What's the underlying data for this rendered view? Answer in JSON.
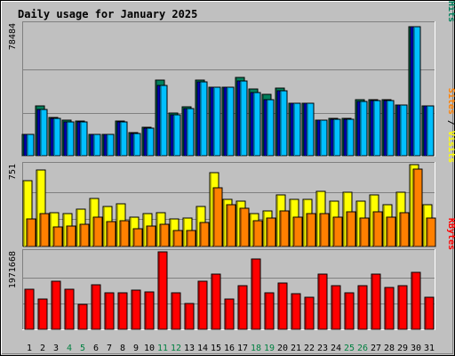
{
  "chart_data": {
    "title": "Daily usage for January 2025",
    "type": "bar",
    "categories": [
      "1",
      "2",
      "3",
      "4",
      "5",
      "6",
      "7",
      "8",
      "9",
      "10",
      "11",
      "12",
      "13",
      "14",
      "15",
      "16",
      "17",
      "18",
      "19",
      "20",
      "21",
      "22",
      "23",
      "24",
      "25",
      "26",
      "27",
      "28",
      "29",
      "30",
      "31"
    ],
    "weekend_days": [
      "4",
      "5",
      "11",
      "12",
      "18",
      "19",
      "25",
      "26"
    ],
    "colors": {
      "title": "#0000a0",
      "hits": "#00805c",
      "files": "#0000ff",
      "pages": "#00c0ff",
      "visits": "#ffff00",
      "sites": "#ff8000",
      "kbytes": "#ff0000",
      "weekday_label": "#000000",
      "weekend_label": "#008040"
    },
    "panels": [
      {
        "name": "hits-files-pages",
        "ymax": 78484,
        "ymax_label": "78484",
        "right_labels": [
          {
            "text": "Pages",
            "color": "#00c0ff"
          },
          {
            "text": " / ",
            "color": "#000000"
          },
          {
            "text": "Files",
            "color": "#0000ff"
          },
          {
            "text": " / ",
            "color": "#000000"
          },
          {
            "text": "Hits",
            "color": "#00805c"
          }
        ],
        "series": [
          {
            "values": [
              13200,
              30300,
              23400,
              21900,
              21000,
              12800,
              13200,
              21000,
              14100,
              17400,
              45900,
              26200,
              29700,
              45900,
              41700,
              41700,
              47400,
              40800,
              37300,
              41100,
              32100,
              32100,
              21900,
              22800,
              23000,
              34100,
              34100,
              34100,
              30900,
              78400,
              30300
            ]
          },
          {
            "values": [
              13200,
              28200,
              22500,
              20800,
              20400,
              12800,
              13200,
              20400,
              13700,
              16900,
              42600,
              25000,
              28700,
              45000,
              41700,
              41700,
              45300,
              38700,
              33900,
              39600,
              32100,
              32100,
              21900,
              22000,
              22400,
              33000,
              33400,
              33800,
              30700,
              78400,
              30300
            ]
          },
          {
            "values": [
              13200,
              28200,
              22500,
              20800,
              20400,
              12800,
              13200,
              20400,
              13700,
              16900,
              42600,
              25000,
              28700,
              45000,
              41700,
              41700,
              45300,
              38700,
              33900,
              39600,
              32100,
              32100,
              21900,
              22000,
              22400,
              33000,
              33400,
              33800,
              30700,
              78400,
              30300
            ]
          }
        ]
      },
      {
        "name": "visits-sites",
        "ymax": 751,
        "ymax_label": "751",
        "right_labels": [
          {
            "text": "Sites",
            "color": "#ff8000"
          },
          {
            "text": " / ",
            "color": "#000000"
          },
          {
            "text": "Visits",
            "color": "#ffff00"
          }
        ],
        "series": [
          {
            "values": [
              600,
              700,
              310,
              300,
              340,
              440,
              370,
              390,
              270,
              300,
              310,
              250,
              260,
              370,
              680,
              430,
              420,
              300,
              330,
              470,
              430,
              430,
              510,
              420,
              500,
              420,
              470,
              380,
              500,
              750,
              380
            ]
          },
          {
            "values": [
              250,
              300,
              180,
              190,
              200,
              270,
              230,
              240,
              160,
              190,
              200,
              150,
              150,
              220,
              540,
              380,
              350,
              240,
              260,
              330,
              270,
              300,
              300,
              270,
              320,
              260,
              320,
              270,
              310,
              710,
              260
            ]
          }
        ]
      },
      {
        "name": "kbytes",
        "ymax": 1971668,
        "ymax_label": "1971668",
        "right_labels": [
          {
            "text": "KBytes",
            "color": "#ff0000"
          }
        ],
        "series": [
          {
            "values": [
              1027000,
              780000,
              1230000,
              1018000,
              645000,
              1134000,
              937000,
              937000,
              987000,
              942000,
              1971000,
              937000,
              648000,
              1227000,
              1403000,
              780000,
              1100000,
              1790000,
              936000,
              1168000,
              898000,
              810000,
              1401000,
              1100000,
              935000,
              1100000,
              1401000,
              1055000,
              1100000,
              1444000,
              818000
            ]
          }
        ]
      }
    ]
  }
}
